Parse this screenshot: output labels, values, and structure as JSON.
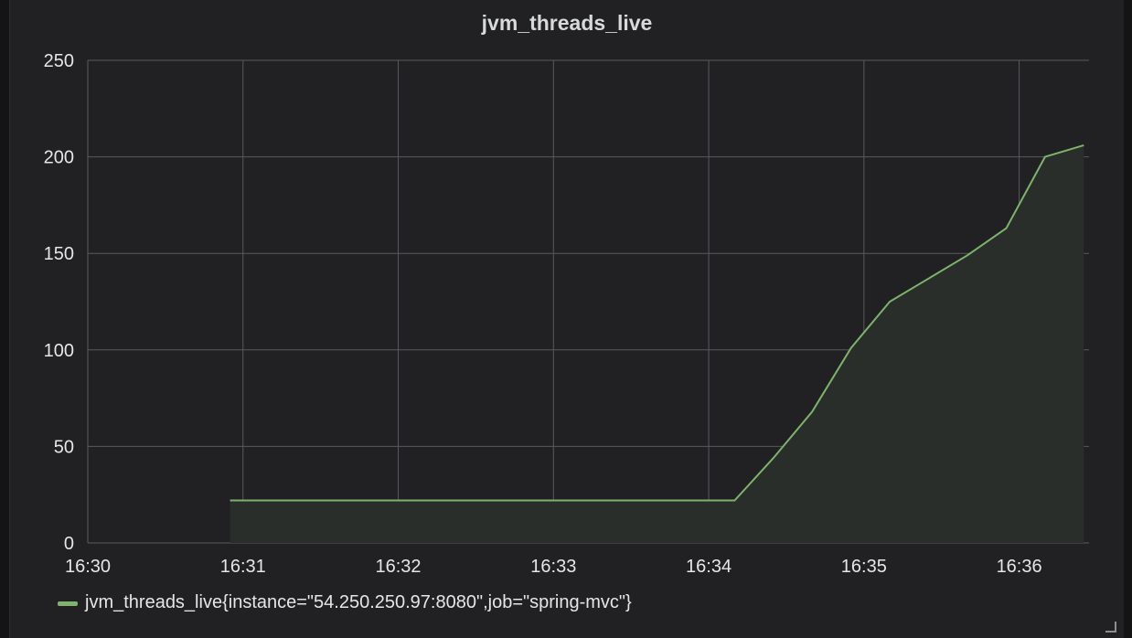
{
  "panel": {
    "title": "jvm_threads_live"
  },
  "legend": {
    "label": "jvm_threads_live{instance=\"54.250.250.97:8080\",job=\"spring-mvc\"}"
  },
  "colors": {
    "series": "#7eb26d",
    "fill": "#2a2e2a",
    "grid": "#5a5a5e",
    "background": "#212124"
  },
  "icons": {
    "resize": "resize-handle-icon"
  },
  "chart_data": {
    "type": "area",
    "title": "jvm_threads_live",
    "xlabel": "",
    "ylabel": "",
    "x_ticks": [
      "16:30",
      "16:31",
      "16:32",
      "16:33",
      "16:34",
      "16:35",
      "16:36"
    ],
    "y_ticks": [
      0,
      50,
      100,
      150,
      200,
      250
    ],
    "ylim": [
      0,
      250
    ],
    "xlim": [
      "16:30:00",
      "16:36:27"
    ],
    "grid": true,
    "legend_position": "bottom-left",
    "series": [
      {
        "name": "jvm_threads_live{instance=\"54.250.250.97:8080\",job=\"spring-mvc\"}",
        "x": [
          "16:30:55",
          "16:31:30",
          "16:32:00",
          "16:33:00",
          "16:34:00",
          "16:34:10",
          "16:34:25",
          "16:34:40",
          "16:34:55",
          "16:35:10",
          "16:35:25",
          "16:35:40",
          "16:35:55",
          "16:36:10",
          "16:36:25"
        ],
        "y": [
          22,
          22,
          22,
          22,
          22,
          22,
          44,
          68,
          101,
          125,
          137,
          149,
          163,
          200,
          206
        ]
      }
    ]
  }
}
